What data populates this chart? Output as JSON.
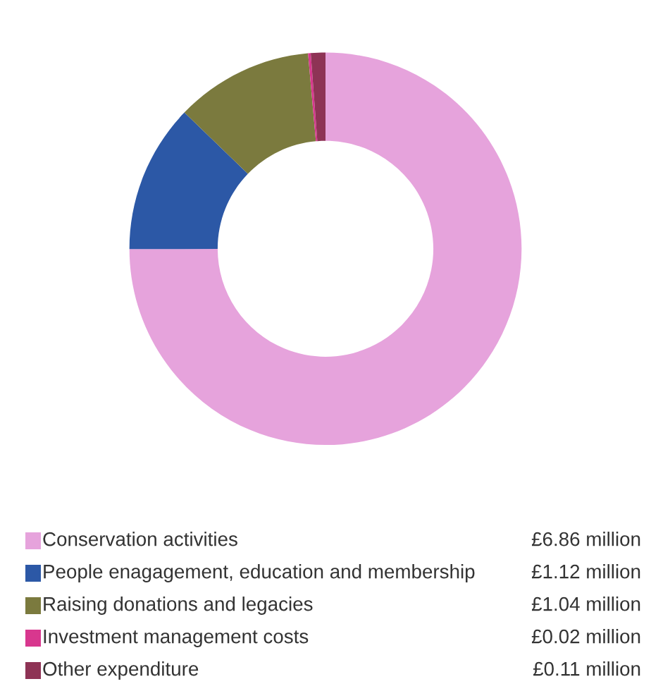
{
  "chart_data": {
    "type": "donut",
    "categories": [
      "Conservation activities",
      "People enagagement, education and membership",
      "Raising donations and legacies",
      "Investment management costs",
      "Other expenditure"
    ],
    "values": [
      6.86,
      1.12,
      1.04,
      0.02,
      0.11
    ],
    "value_labels": [
      "£6.86 million",
      "£1.12 million",
      "£1.04 million",
      "£0.02 million",
      "£0.11 million"
    ],
    "colors": [
      "#e6a3dc",
      "#2c58a6",
      "#7b7a3e",
      "#d8378e",
      "#8e3355"
    ],
    "legend": "bottom"
  }
}
